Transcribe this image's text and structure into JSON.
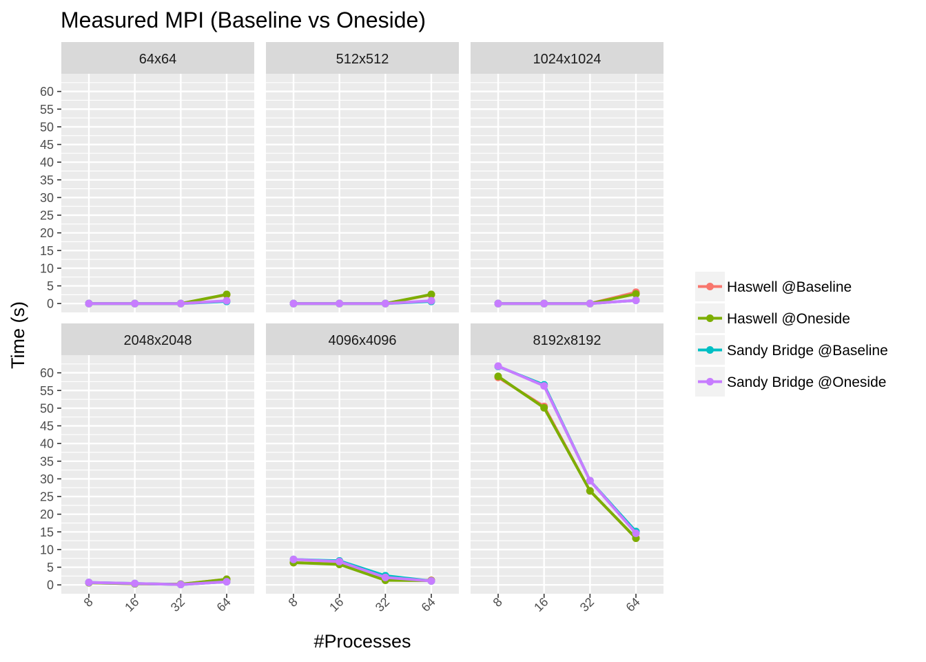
{
  "chart_data": {
    "type": "line",
    "title": "Measured MPI (Baseline vs Oneside)",
    "xlabel": "#Processes",
    "ylabel": "Time (s)",
    "categories": [
      "8",
      "16",
      "32",
      "64"
    ],
    "y_ticks": [
      "0",
      "5",
      "10",
      "15",
      "20",
      "25",
      "30",
      "35",
      "40",
      "45",
      "50",
      "55",
      "60"
    ],
    "ylim": [
      -2.5,
      65
    ],
    "grid": true,
    "legend_position": "right",
    "legend": [
      {
        "name": "Haswell @Baseline",
        "color": "#F8766D"
      },
      {
        "name": "Haswell @Oneside",
        "color": "#7CAE00"
      },
      {
        "name": "Sandy Bridge @Baseline",
        "color": "#00BFC4"
      },
      {
        "name": "Sandy Bridge @Oneside",
        "color": "#C77CFF"
      }
    ],
    "panels": [
      {
        "title": "64x64",
        "series": [
          {
            "name": "Haswell @Baseline",
            "values": [
              0.0,
              0.0,
              0.0,
              2.5
            ]
          },
          {
            "name": "Haswell @Oneside",
            "values": [
              0.0,
              0.0,
              0.0,
              2.6
            ]
          },
          {
            "name": "Sandy Bridge @Baseline",
            "values": [
              0.0,
              0.0,
              0.0,
              0.6
            ]
          },
          {
            "name": "Sandy Bridge @Oneside",
            "values": [
              0.0,
              0.0,
              0.0,
              0.8
            ]
          }
        ]
      },
      {
        "title": "512x512",
        "series": [
          {
            "name": "Haswell @Baseline",
            "values": [
              0.0,
              0.0,
              0.0,
              2.5
            ]
          },
          {
            "name": "Haswell @Oneside",
            "values": [
              0.0,
              0.0,
              0.0,
              2.6
            ]
          },
          {
            "name": "Sandy Bridge @Baseline",
            "values": [
              0.0,
              0.0,
              0.0,
              0.6
            ]
          },
          {
            "name": "Sandy Bridge @Oneside",
            "values": [
              0.0,
              0.0,
              0.0,
              0.8
            ]
          }
        ]
      },
      {
        "title": "1024x1024",
        "series": [
          {
            "name": "Haswell @Baseline",
            "values": [
              0.0,
              0.0,
              0.0,
              3.2
            ]
          },
          {
            "name": "Haswell @Oneside",
            "values": [
              0.0,
              0.0,
              0.0,
              2.7
            ]
          },
          {
            "name": "Sandy Bridge @Baseline",
            "values": [
              0.0,
              0.0,
              0.0,
              0.9
            ]
          },
          {
            "name": "Sandy Bridge @Oneside",
            "values": [
              0.0,
              0.0,
              0.0,
              0.9
            ]
          }
        ]
      },
      {
        "title": "2048x2048",
        "series": [
          {
            "name": "Haswell @Baseline",
            "values": [
              0.6,
              0.3,
              0.2,
              1.6
            ]
          },
          {
            "name": "Haswell @Oneside",
            "values": [
              0.6,
              0.3,
              0.2,
              1.6
            ]
          },
          {
            "name": "Sandy Bridge @Baseline",
            "values": [
              0.7,
              0.4,
              0.1,
              0.9
            ]
          },
          {
            "name": "Sandy Bridge @Oneside",
            "values": [
              0.7,
              0.4,
              0.1,
              0.9
            ]
          }
        ]
      },
      {
        "title": "4096x4096",
        "series": [
          {
            "name": "Haswell @Baseline",
            "values": [
              6.3,
              5.9,
              1.4,
              1.3
            ]
          },
          {
            "name": "Haswell @Oneside",
            "values": [
              6.3,
              5.8,
              1.3,
              1.2
            ]
          },
          {
            "name": "Sandy Bridge @Baseline",
            "values": [
              7.2,
              6.8,
              2.6,
              1.1
            ]
          },
          {
            "name": "Sandy Bridge @Oneside",
            "values": [
              7.2,
              6.6,
              2.1,
              1.1
            ]
          }
        ]
      },
      {
        "title": "8192x8192",
        "series": [
          {
            "name": "Haswell @Baseline",
            "values": [
              58.7,
              50.5,
              26.6,
              13.2
            ]
          },
          {
            "name": "Haswell @Oneside",
            "values": [
              59.0,
              50.1,
              26.6,
              13.2
            ]
          },
          {
            "name": "Sandy Bridge @Baseline",
            "values": [
              61.8,
              56.6,
              29.5,
              15.1
            ]
          },
          {
            "name": "Sandy Bridge @Oneside",
            "values": [
              61.9,
              56.3,
              29.5,
              14.6
            ]
          }
        ]
      }
    ]
  }
}
